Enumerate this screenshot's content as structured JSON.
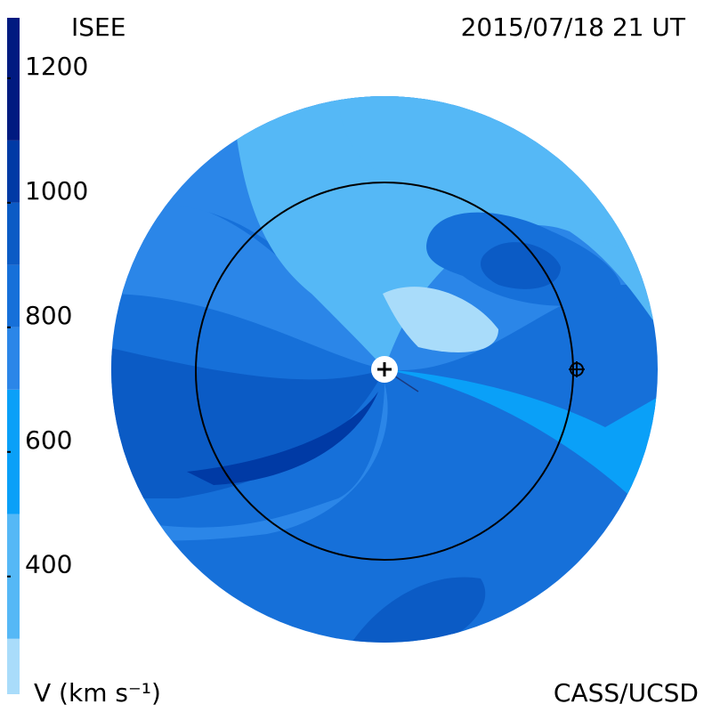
{
  "header": {
    "left": "ISEE",
    "right": "2015/07/18 21 UT"
  },
  "footer": {
    "left": "V (km s⁻¹)",
    "right": "CASS/UCSD"
  },
  "colorbar": {
    "range": [
      211,
      1297
    ],
    "ticks": [
      400,
      600,
      800,
      1000,
      1200
    ],
    "bands": [
      211,
      300,
      500,
      700,
      800,
      900,
      1000,
      1100,
      1297
    ],
    "colors": [
      "#a9dcfa",
      "#55b8f6",
      "#0aa0f8",
      "#2b86e8",
      "#1670d9",
      "#0b5bc5",
      "#003aa5",
      "#001a80"
    ]
  }
}
